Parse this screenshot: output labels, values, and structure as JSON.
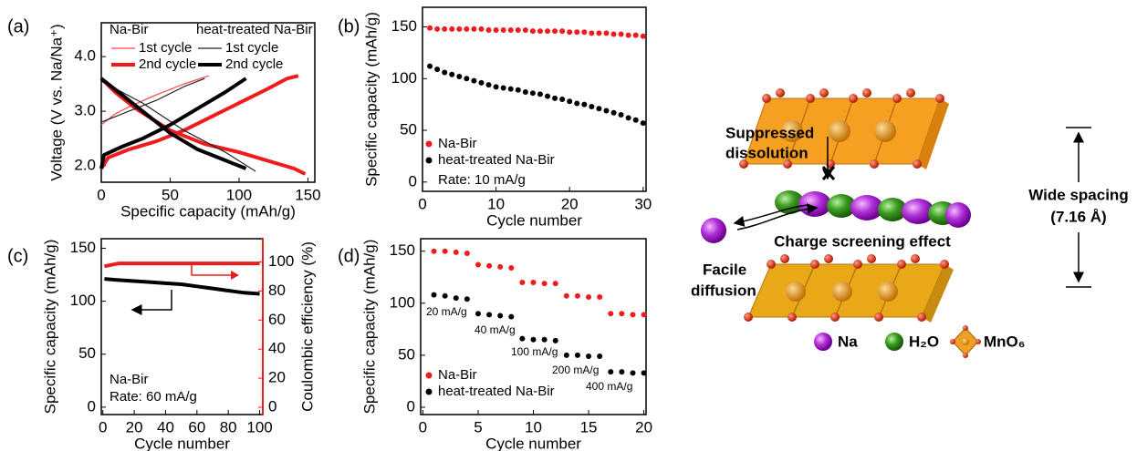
{
  "chart_data": [
    {
      "type": "line",
      "panel_label": "(a)",
      "x_label": "Specific capacity (mAh/g)",
      "y_label": "Voltage (V vs. Na/Na⁺)",
      "xlim": [
        0,
        155
      ],
      "ylim": [
        1.7,
        4.62
      ],
      "xticks": [
        0,
        50,
        100,
        150
      ],
      "yticks": [
        {
          "value": 2,
          "label": "2.0"
        },
        {
          "value": 3,
          "label": "3.0"
        },
        {
          "value": 4,
          "label": "4.0"
        }
      ],
      "groups": [
        {
          "name": "Na-Bir",
          "series": [
            {
              "name": "1st cycle",
              "color": "#ff4545",
              "width": 1.2,
              "x": [
                0,
                10,
                20,
                40,
                60,
                78
              ],
              "values": [
                2.75,
                2.95,
                3.08,
                3.3,
                3.5,
                3.65
              ]
            },
            {
              "name": "2nd cycle",
              "color": "#ee1c1c",
              "width": 4,
              "x": [
                0,
                5,
                20,
                40,
                60,
                80,
                100,
                120,
                135,
                143,
                null,
                0,
                10,
                25,
                50,
                75,
                100,
                120,
                140,
                148
              ],
              "values": [
                1.95,
                2.15,
                2.3,
                2.45,
                2.65,
                2.9,
                3.15,
                3.4,
                3.6,
                3.65,
                null,
                3.6,
                3.35,
                3.05,
                2.65,
                2.4,
                2.25,
                2.1,
                1.95,
                1.85
              ]
            }
          ]
        },
        {
          "name": "heat-treated Na-Bir",
          "series": [
            {
              "name": "1st cycle",
              "color": "#222222",
              "width": 1.2,
              "x": [
                0,
                20,
                40,
                60,
                75,
                null,
                0,
                30,
                60,
                90,
                112
              ],
              "values": [
                2.8,
                3.0,
                3.2,
                3.45,
                3.6,
                null,
                3.55,
                3.15,
                2.65,
                2.25,
                1.9
              ]
            },
            {
              "name": "2nd cycle",
              "color": "#000000",
              "width": 4,
              "x": [
                0,
                2,
                15,
                30,
                50,
                70,
                90,
                105,
                null,
                0,
                15,
                30,
                50,
                70,
                90,
                105
              ],
              "values": [
                1.95,
                2.2,
                2.35,
                2.5,
                2.75,
                3.05,
                3.35,
                3.6,
                null,
                3.6,
                3.3,
                3.0,
                2.6,
                2.3,
                2.1,
                1.95
              ]
            }
          ]
        }
      ]
    },
    {
      "type": "scatter",
      "panel_label": "(b)",
      "x_label": "Cycle number",
      "y_label": "Specific capacity (mAh/g)",
      "xlim": [
        0,
        30.4
      ],
      "ylim": [
        -9,
        169
      ],
      "xticks": [
        0,
        10,
        20,
        30
      ],
      "yticks": [
        0,
        50,
        100,
        150
      ],
      "series": [
        {
          "name": "Na-Bir",
          "color": "#ee1c1c",
          "x": [
            1,
            2,
            3,
            4,
            5,
            6,
            7,
            8,
            9,
            10,
            11,
            12,
            13,
            14,
            15,
            16,
            17,
            18,
            19,
            20,
            21,
            22,
            23,
            24,
            25,
            26,
            27,
            28,
            29,
            30
          ],
          "values": [
            149,
            148,
            148,
            148,
            148,
            148,
            148,
            148,
            147,
            147,
            147,
            147,
            147,
            147,
            146,
            146,
            146,
            146,
            146,
            145,
            145,
            145,
            144,
            144,
            144,
            143,
            143,
            142,
            142,
            141
          ]
        },
        {
          "name": "heat-treated Na-Bir",
          "color": "#000000",
          "x": [
            1,
            2,
            3,
            4,
            5,
            6,
            7,
            8,
            9,
            10,
            11,
            12,
            13,
            14,
            15,
            16,
            17,
            18,
            19,
            20,
            21,
            22,
            23,
            24,
            25,
            26,
            27,
            28,
            29,
            30
          ],
          "values": [
            112,
            109,
            106,
            104,
            102,
            100,
            98,
            96,
            94,
            92,
            91,
            90,
            89,
            87,
            86,
            85,
            83,
            81,
            80,
            78,
            76,
            75,
            73,
            71,
            69,
            67,
            65,
            62,
            60,
            57
          ]
        }
      ],
      "annotations": [
        "Rate: 10 mA/g"
      ]
    },
    {
      "type": "line",
      "panel_label": "(c)",
      "x_label": "Cycle number",
      "y_label": "Specific capacity (mAh/g)",
      "y2_label": "Coulombic efficiency (%)",
      "xlim": [
        -1,
        102
      ],
      "ylim": [
        -7,
        159
      ],
      "y2lim": [
        -5,
        116
      ],
      "xticks": [
        0,
        20,
        40,
        60,
        80,
        100
      ],
      "yticks": [
        0,
        50,
        100,
        150
      ],
      "y2ticks": [
        0,
        20,
        40,
        60,
        80,
        100
      ],
      "y2color": "#ee1c1c",
      "series": [
        {
          "color": "#000000",
          "width": 4,
          "x": [
            1,
            10,
            20,
            30,
            40,
            50,
            60,
            70,
            80,
            90,
            100
          ],
          "values": [
            121,
            120,
            119,
            118,
            117,
            116,
            114,
            112,
            110,
            108,
            107
          ]
        },
        {
          "color": "#ee1c1c",
          "width": 4,
          "axis": "y2",
          "x": [
            1,
            10,
            20,
            30,
            40,
            50,
            60,
            70,
            80,
            90,
            100
          ],
          "values": [
            97,
            99,
            99,
            99,
            99,
            99,
            99,
            99,
            99,
            99,
            99
          ]
        }
      ],
      "annotations": [
        "Na-Bir",
        "Rate: 60 mA/g"
      ]
    },
    {
      "type": "scatter",
      "panel_label": "(d)",
      "x_label": "Cycle number",
      "y_label": "Specific capacity (mAh/g)",
      "xlim": [
        -0.2,
        20.2
      ],
      "ylim": [
        -7,
        162
      ],
      "xticks": [
        0,
        5,
        10,
        15,
        20
      ],
      "yticks": [
        0,
        50,
        100,
        150
      ],
      "series": [
        {
          "name": "Na-Bir",
          "color": "#ee1c1c",
          "x": [
            1,
            2,
            3,
            4,
            5,
            6,
            7,
            8,
            9,
            10,
            11,
            12,
            13,
            14,
            15,
            16,
            17,
            18,
            19,
            20
          ],
          "values": [
            150,
            150,
            149,
            148,
            137,
            136,
            135,
            134,
            120,
            120,
            119,
            119,
            107,
            107,
            106,
            106,
            90,
            90,
            89,
            89
          ]
        },
        {
          "name": "heat-treated Na-Bir",
          "color": "#000000",
          "x": [
            1,
            2,
            3,
            4,
            5,
            6,
            7,
            8,
            9,
            10,
            11,
            12,
            13,
            14,
            15,
            16,
            17,
            18,
            19,
            20
          ],
          "values": [
            108,
            107,
            105,
            104,
            90,
            89,
            88,
            87,
            66,
            65,
            65,
            64,
            50,
            50,
            49,
            49,
            34,
            34,
            33,
            33
          ]
        }
      ],
      "annotations": [
        "20 mA/g",
        "40 mA/g",
        "100 mA/g",
        "200 mA/g",
        "400 mA/g"
      ]
    }
  ],
  "diagram": {
    "suppressed_dissolution": [
      "Suppressed",
      "dissolution"
    ],
    "facile_diffusion": [
      "Facile",
      "diffusion"
    ],
    "charge_screening": "Charge screening effect",
    "wide_spacing": [
      "Wide spacing",
      "(7.16 Å)"
    ],
    "legend": [
      "Na",
      "H₂O",
      "MnO₆"
    ]
  }
}
